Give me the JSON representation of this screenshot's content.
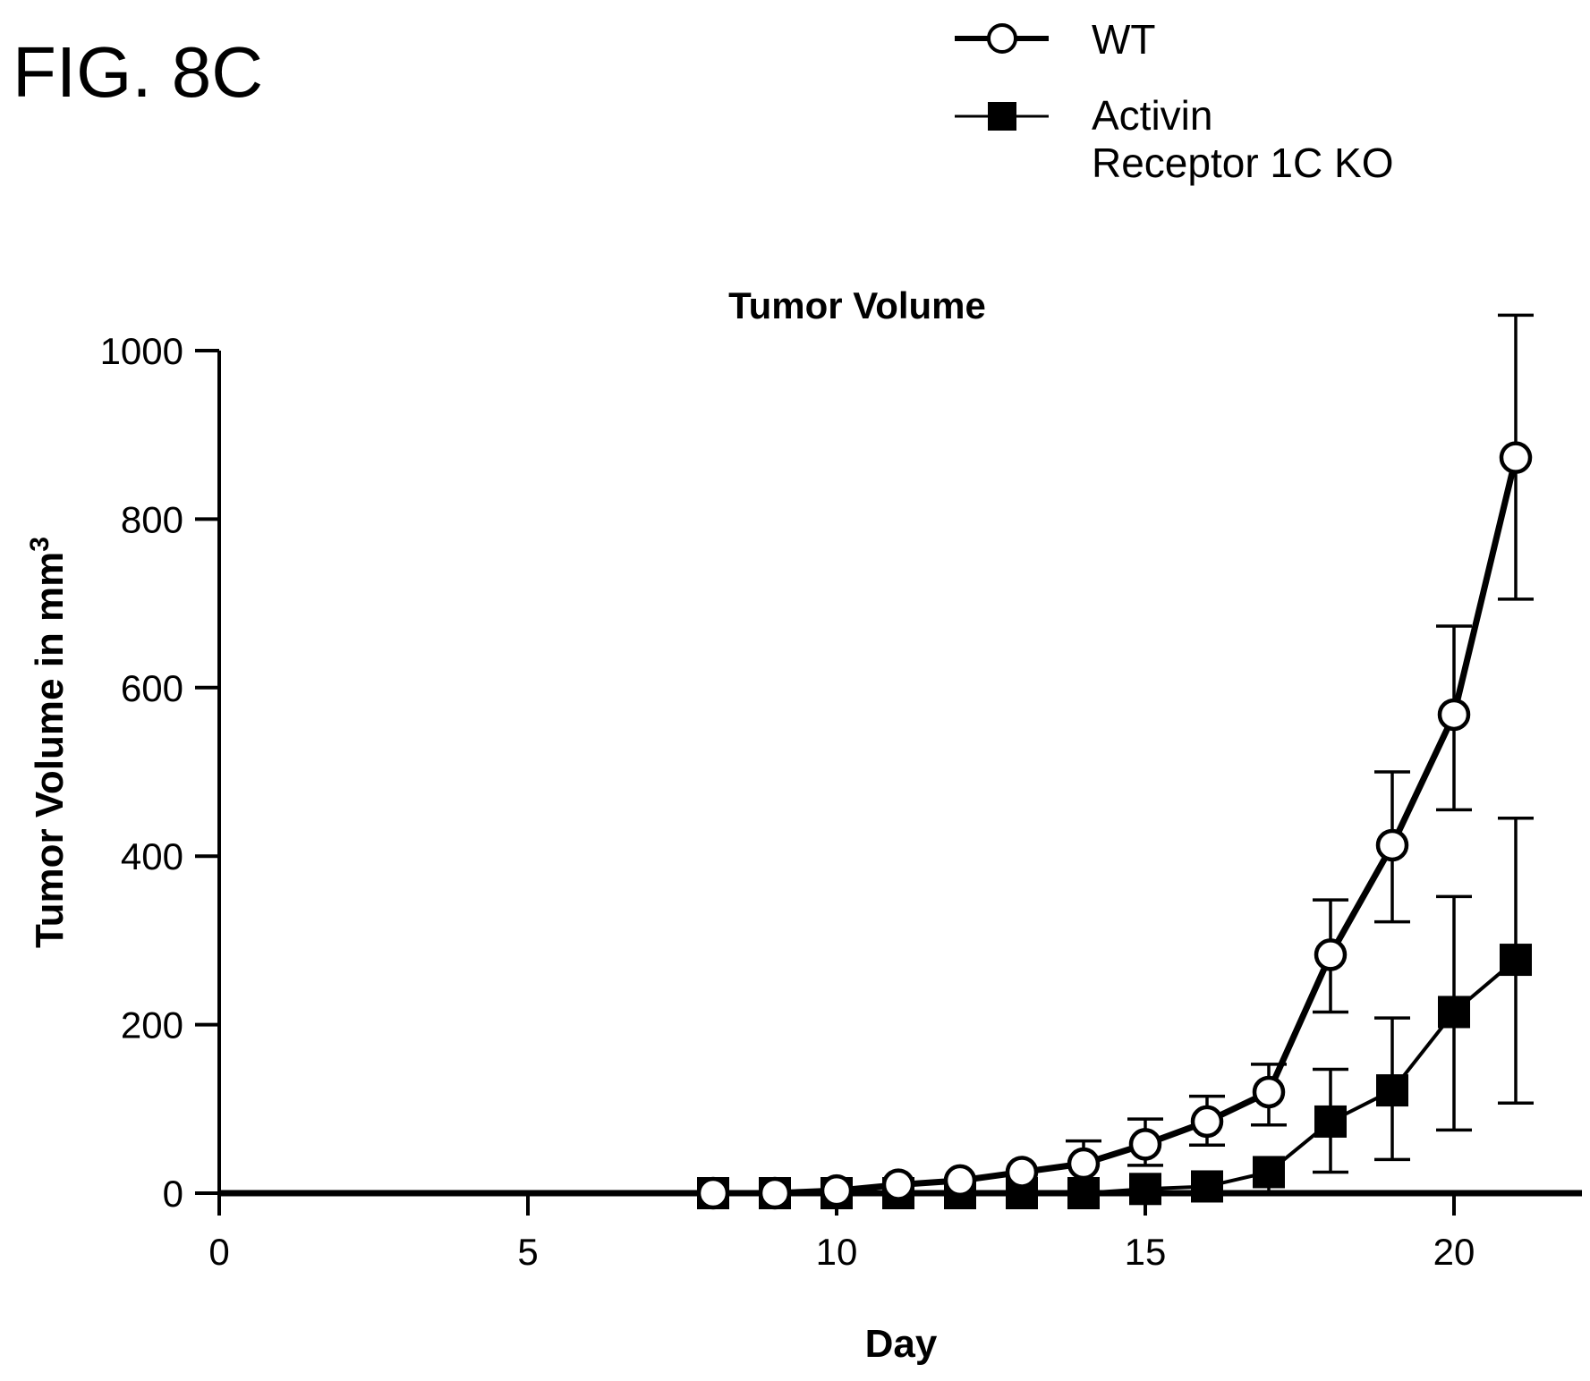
{
  "figure_label": "FIG. 8C",
  "chart_data": {
    "type": "line",
    "title": "Tumor Volume",
    "xlabel": "Day",
    "ylabel_main": "Tumor Volume in mm",
    "ylabel_sup": "3",
    "xlim": [
      0,
      22
    ],
    "ylim": [
      0,
      1000
    ],
    "x_ticks": [
      0,
      5,
      10,
      15,
      20
    ],
    "y_ticks": [
      0,
      200,
      400,
      600,
      800,
      1000
    ],
    "legend_position": "top-right",
    "legend": {
      "wt_label": "WT",
      "ko_label_line1": "Activin",
      "ko_label_line2": "Receptor 1C KO"
    },
    "series": [
      {
        "name": "WT",
        "marker": "open-circle",
        "x": [
          8,
          9,
          10,
          11,
          12,
          13,
          14,
          15,
          16,
          17,
          18,
          19,
          20,
          21
        ],
        "y": [
          0,
          0,
          3,
          10,
          15,
          25,
          35,
          58,
          85,
          120,
          283,
          413,
          568,
          873
        ],
        "err_hi": [
          0,
          0,
          0,
          0,
          0,
          0,
          62,
          88,
          115,
          153,
          348,
          500,
          673,
          1042
        ],
        "err_lo": [
          0,
          0,
          0,
          0,
          0,
          0,
          0,
          33,
          57,
          81,
          215,
          322,
          455,
          705
        ]
      },
      {
        "name": "Activin Receptor 1C KO",
        "marker": "filled-square",
        "x": [
          8,
          9,
          10,
          11,
          12,
          13,
          14,
          15,
          16,
          17,
          18,
          19,
          20,
          21
        ],
        "y": [
          0,
          0,
          0,
          0,
          0,
          0,
          0,
          5,
          8,
          25,
          85,
          122,
          215,
          277
        ],
        "err_hi": [
          0,
          0,
          0,
          0,
          0,
          0,
          0,
          0,
          0,
          0,
          147,
          208,
          352,
          445
        ],
        "err_lo": [
          0,
          0,
          0,
          0,
          0,
          0,
          0,
          0,
          0,
          0,
          25,
          40,
          75,
          107
        ]
      }
    ]
  }
}
